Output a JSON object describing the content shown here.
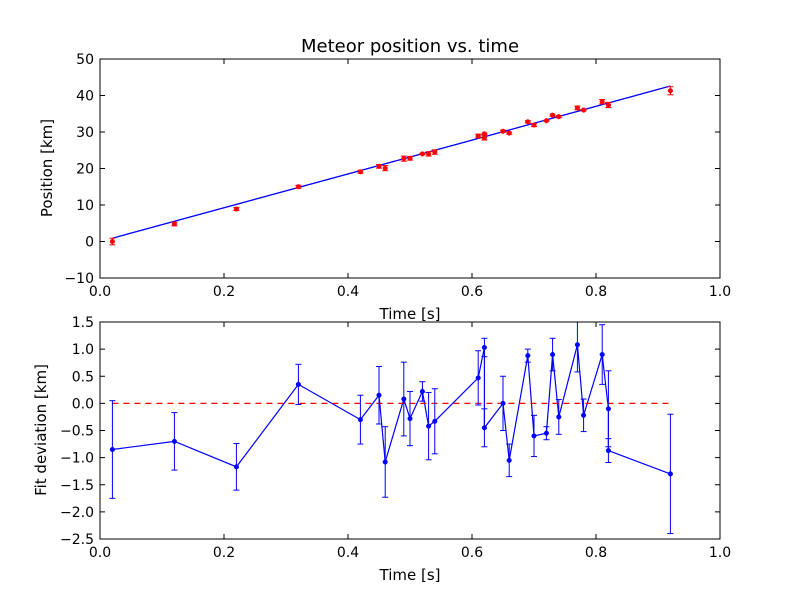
{
  "chart_data": [
    {
      "type": "scatter",
      "title": "Meteor position vs. time",
      "xlabel": "Time [s]",
      "ylabel": "Position [km]",
      "xlim": [
        0.0,
        1.0
      ],
      "ylim": [
        -10,
        50
      ],
      "xticks": [
        "0.0",
        "0.2",
        "0.4",
        "0.6",
        "0.8",
        "1.0"
      ],
      "yticks": [
        "−10",
        "0",
        "10",
        "20",
        "30",
        "40",
        "50"
      ],
      "grid": false,
      "series": [
        {
          "kind": "errorbar-points",
          "color": "#ff0000",
          "x": [
            0.02,
            0.12,
            0.22,
            0.32,
            0.42,
            0.45,
            0.46,
            0.49,
            0.5,
            0.52,
            0.53,
            0.54,
            0.61,
            0.62,
            0.62,
            0.65,
            0.66,
            0.69,
            0.7,
            0.72,
            0.73,
            0.74,
            0.77,
            0.78,
            0.81,
            0.82,
            0.82,
            0.92
          ],
          "y": [
            0.0,
            4.8,
            8.9,
            15.0,
            19.1,
            20.6,
            20.1,
            22.7,
            22.8,
            24.0,
            24.0,
            24.5,
            28.9,
            28.4,
            29.5,
            30.2,
            29.7,
            32.8,
            31.9,
            33.1,
            34.6,
            34.2,
            36.6,
            36.0,
            38.3,
            37.4,
            37.4,
            41.3
          ],
          "yerr": [
            0.9,
            0.5,
            0.4,
            0.4,
            0.4,
            0.5,
            0.7,
            0.7,
            0.5,
            0.2,
            0.6,
            0.6,
            0.5,
            0.6,
            0.2,
            0.3,
            0.3,
            0.3,
            0.4,
            0.1,
            0.3,
            0.3,
            0.5,
            0.2,
            0.6,
            0.7,
            0.7,
            1.1
          ]
        },
        {
          "kind": "fit-line",
          "color": "#0000ff",
          "x": [
            0.02,
            0.92
          ],
          "y": [
            0.9,
            42.6
          ]
        }
      ]
    },
    {
      "type": "line",
      "xlabel": "Time [s]",
      "ylabel": "Fit deviation [km]",
      "xlim": [
        0.0,
        1.0
      ],
      "ylim": [
        -2.5,
        1.5
      ],
      "xticks": [
        "0.0",
        "0.2",
        "0.4",
        "0.6",
        "0.8",
        "1.0"
      ],
      "yticks": [
        "−2.5",
        "−2.0",
        "−1.5",
        "−1.0",
        "−0.5",
        "0.0",
        "0.5",
        "1.0",
        "1.5"
      ],
      "grid": false,
      "series": [
        {
          "kind": "errorbar-line",
          "color": "#0000ff",
          "x": [
            0.02,
            0.12,
            0.22,
            0.32,
            0.42,
            0.45,
            0.46,
            0.49,
            0.5,
            0.52,
            0.53,
            0.54,
            0.61,
            0.62,
            0.62,
            0.65,
            0.66,
            0.69,
            0.7,
            0.72,
            0.73,
            0.74,
            0.77,
            0.78,
            0.81,
            0.82,
            0.82,
            0.92
          ],
          "y": [
            -0.85,
            -0.7,
            -1.17,
            0.35,
            -0.3,
            0.15,
            -1.08,
            0.08,
            -0.28,
            0.22,
            -0.42,
            -0.33,
            0.47,
            1.03,
            -0.45,
            0.0,
            -1.05,
            0.88,
            -0.6,
            -0.55,
            0.9,
            -0.25,
            1.08,
            -0.22,
            0.9,
            -0.1,
            -0.87,
            -1.3
          ],
          "yerr": [
            0.9,
            0.53,
            0.43,
            0.37,
            0.45,
            0.53,
            0.65,
            0.68,
            0.5,
            0.18,
            0.62,
            0.6,
            0.5,
            0.17,
            0.35,
            0.5,
            0.3,
            0.12,
            0.38,
            0.12,
            0.3,
            0.32,
            0.5,
            0.3,
            0.55,
            0.7,
            0.22,
            1.1
          ]
        },
        {
          "kind": "reference-line",
          "color": "#ff0000",
          "dashed": true,
          "x": [
            0.02,
            0.92
          ],
          "y": [
            0.0,
            0.0
          ]
        }
      ]
    }
  ]
}
